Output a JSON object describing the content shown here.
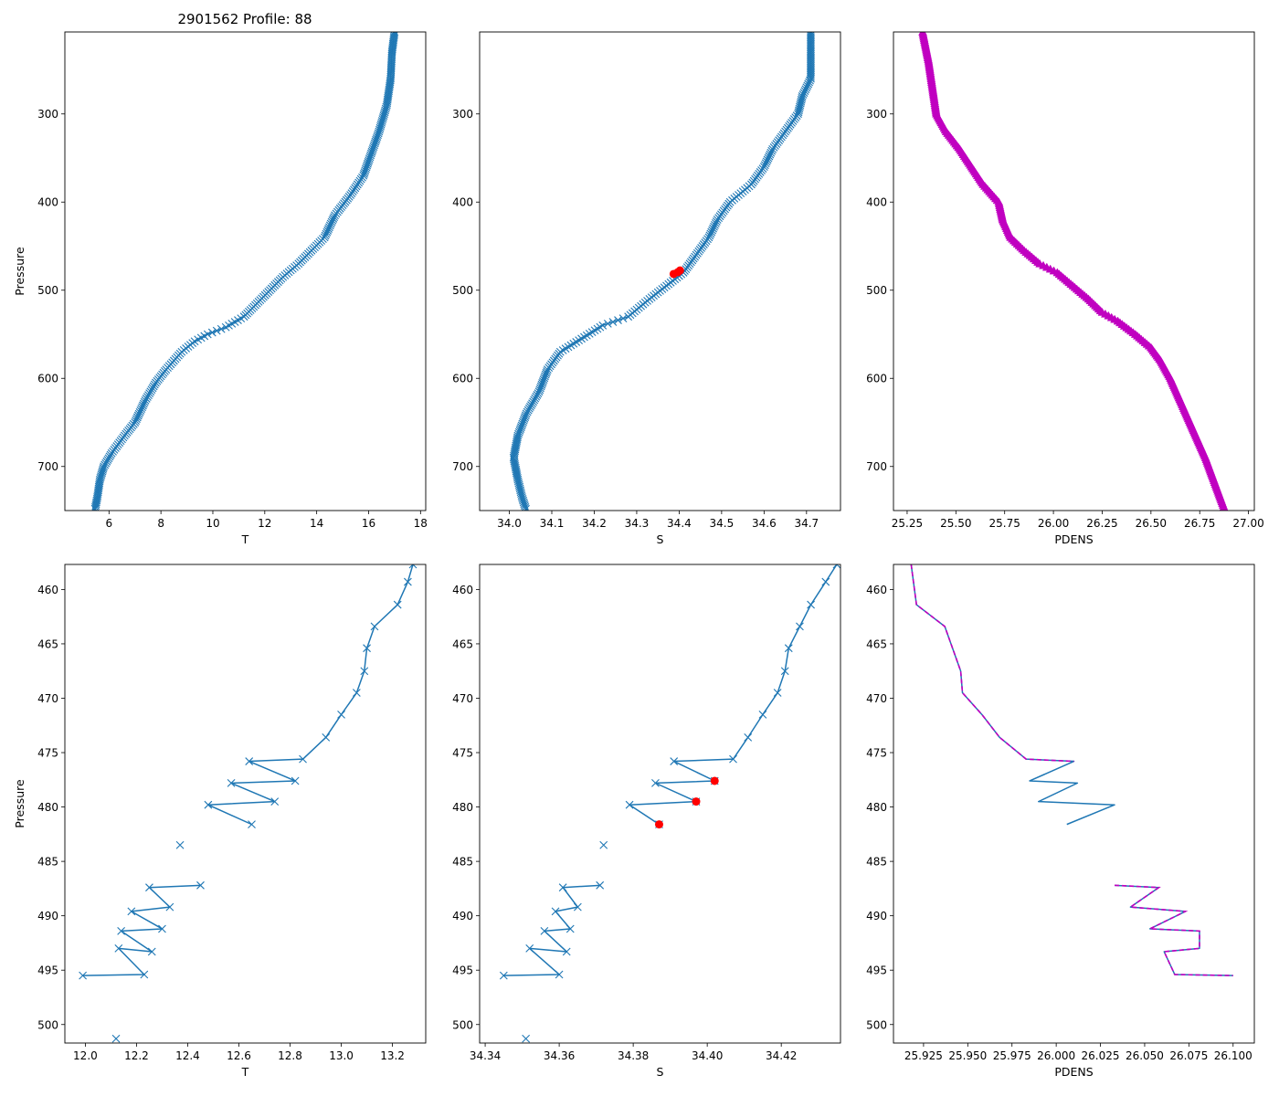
{
  "figure_title": "2901562 Profile: 88",
  "colors": {
    "series": "#1f77b4",
    "flag": "#ff0000",
    "density": "#c000c0"
  },
  "chart_data": [
    {
      "id": "temp-full",
      "type": "line",
      "marker": "x",
      "title": "",
      "xlabel": "T",
      "ylabel": "Pressure",
      "xlim": [
        4.3,
        18.2
      ],
      "ylim": [
        750,
        207
      ],
      "y_inverted": true,
      "xticks": [
        6,
        8,
        10,
        12,
        14,
        16,
        18
      ],
      "xtick_labels": [
        "6",
        "8",
        "10",
        "12",
        "14",
        "16",
        "18"
      ],
      "yticks": [
        300,
        400,
        500,
        600,
        700
      ],
      "ytick_labels": [
        "300",
        "400",
        "500",
        "600",
        "700"
      ],
      "profile": [
        [
          17.0,
          207
        ],
        [
          16.9,
          230
        ],
        [
          16.85,
          260
        ],
        [
          16.7,
          290
        ],
        [
          16.4,
          320
        ],
        [
          16.1,
          345
        ],
        [
          15.8,
          370
        ],
        [
          15.3,
          392
        ],
        [
          14.7,
          415
        ],
        [
          14.3,
          440
        ],
        [
          13.8,
          455
        ],
        [
          13.3,
          470
        ],
        [
          12.7,
          485
        ],
        [
          12.2,
          500
        ],
        [
          11.7,
          515
        ],
        [
          11.2,
          530
        ],
        [
          10.5,
          542
        ],
        [
          9.8,
          550
        ],
        [
          9.3,
          558
        ],
        [
          8.8,
          570
        ],
        [
          8.2,
          590
        ],
        [
          7.8,
          605
        ],
        [
          7.4,
          625
        ],
        [
          7.0,
          650
        ],
        [
          6.6,
          665
        ],
        [
          6.1,
          685
        ],
        [
          5.8,
          700
        ],
        [
          5.65,
          715
        ],
        [
          5.55,
          735
        ],
        [
          5.45,
          750
        ]
      ],
      "flags": []
    },
    {
      "id": "sal-full",
      "type": "line",
      "marker": "x",
      "title": "",
      "xlabel": "S",
      "ylabel": "",
      "xlim": [
        33.93,
        34.78
      ],
      "ylim": [
        750,
        207
      ],
      "y_inverted": true,
      "xticks": [
        34.0,
        34.1,
        34.2,
        34.3,
        34.4,
        34.5,
        34.6,
        34.7
      ],
      "xtick_labels": [
        "34.0",
        "34.1",
        "34.2",
        "34.3",
        "34.4",
        "34.5",
        "34.6",
        "34.7"
      ],
      "yticks": [
        300,
        400,
        500,
        600,
        700
      ],
      "ytick_labels": [
        "300",
        "400",
        "500",
        "600",
        "700"
      ],
      "profile": [
        [
          34.71,
          207
        ],
        [
          34.71,
          230
        ],
        [
          34.71,
          260
        ],
        [
          34.69,
          280
        ],
        [
          34.68,
          300
        ],
        [
          34.65,
          320
        ],
        [
          34.62,
          340
        ],
        [
          34.6,
          360
        ],
        [
          34.57,
          380
        ],
        [
          34.52,
          400
        ],
        [
          34.49,
          420
        ],
        [
          34.47,
          440
        ],
        [
          34.44,
          460
        ],
        [
          34.41,
          480
        ],
        [
          34.37,
          495
        ],
        [
          34.33,
          510
        ],
        [
          34.28,
          530
        ],
        [
          34.22,
          540
        ],
        [
          34.17,
          555
        ],
        [
          34.12,
          570
        ],
        [
          34.09,
          590
        ],
        [
          34.07,
          615
        ],
        [
          34.04,
          640
        ],
        [
          34.02,
          665
        ],
        [
          34.01,
          690
        ],
        [
          34.02,
          715
        ],
        [
          34.03,
          735
        ],
        [
          34.04,
          750
        ]
      ],
      "flags": [
        [
          34.402,
          477.6
        ],
        [
          34.397,
          479.5
        ],
        [
          34.387,
          481.6
        ]
      ]
    },
    {
      "id": "pdens-full",
      "type": "line",
      "marker": "triangle",
      "title": "",
      "xlabel": "PDENS",
      "ylabel": "",
      "xlim": [
        25.18,
        27.03
      ],
      "ylim": [
        750,
        207
      ],
      "y_inverted": true,
      "xticks": [
        25.25,
        25.5,
        25.75,
        26.0,
        26.25,
        26.5,
        26.75,
        27.0
      ],
      "xtick_labels": [
        "25.25",
        "25.50",
        "25.75",
        "26.00",
        "26.25",
        "26.50",
        "26.75",
        "27.00"
      ],
      "yticks": [
        300,
        400,
        500,
        600,
        700
      ],
      "ytick_labels": [
        "300",
        "400",
        "500",
        "600",
        "700"
      ],
      "profile": [
        [
          25.33,
          207
        ],
        [
          25.36,
          240
        ],
        [
          25.38,
          270
        ],
        [
          25.4,
          300
        ],
        [
          25.45,
          320
        ],
        [
          25.52,
          340
        ],
        [
          25.58,
          360
        ],
        [
          25.64,
          380
        ],
        [
          25.72,
          400
        ],
        [
          25.74,
          420
        ],
        [
          25.78,
          440
        ],
        [
          25.85,
          455
        ],
        [
          25.93,
          470
        ],
        [
          26.02,
          480
        ],
        [
          26.1,
          495
        ],
        [
          26.18,
          510
        ],
        [
          26.25,
          525
        ],
        [
          26.33,
          535
        ],
        [
          26.42,
          550
        ],
        [
          26.5,
          565
        ],
        [
          26.55,
          580
        ],
        [
          26.6,
          600
        ],
        [
          26.64,
          620
        ],
        [
          26.68,
          640
        ],
        [
          26.73,
          665
        ],
        [
          26.78,
          690
        ],
        [
          26.83,
          720
        ],
        [
          26.88,
          750
        ]
      ],
      "flags": []
    },
    {
      "id": "temp-zoom",
      "type": "line",
      "marker": "x",
      "title": "",
      "xlabel": "T",
      "ylabel": "Pressure",
      "xlim": [
        11.92,
        13.33
      ],
      "ylim": [
        501.7,
        457.7
      ],
      "y_inverted": true,
      "xticks": [
        12.0,
        12.2,
        12.4,
        12.6,
        12.8,
        13.0,
        13.2
      ],
      "xtick_labels": [
        "12.0",
        "12.2",
        "12.4",
        "12.6",
        "12.8",
        "13.0",
        "13.2"
      ],
      "yticks": [
        460,
        465,
        470,
        475,
        480,
        485,
        490,
        495,
        500
      ],
      "ytick_labels": [
        "460",
        "465",
        "470",
        "475",
        "480",
        "485",
        "490",
        "495",
        "500"
      ],
      "segments": [
        [
          [
            13.28,
            457.7
          ],
          [
            13.26,
            459.3
          ],
          [
            13.22,
            461.4
          ],
          [
            13.13,
            463.4
          ],
          [
            13.1,
            465.4
          ],
          [
            13.09,
            467.5
          ],
          [
            13.06,
            469.5
          ],
          [
            13.0,
            471.5
          ],
          [
            12.94,
            473.6
          ],
          [
            12.85,
            475.6
          ],
          [
            12.64,
            475.8
          ],
          [
            12.82,
            477.6
          ],
          [
            12.57,
            477.8
          ],
          [
            12.74,
            479.5
          ],
          [
            12.48,
            479.8
          ],
          [
            12.65,
            481.6
          ]
        ],
        [
          [
            12.37,
            483.5
          ]
        ],
        [
          [
            12.45,
            487.2
          ],
          [
            12.25,
            487.4
          ],
          [
            12.33,
            489.2
          ],
          [
            12.18,
            489.6
          ],
          [
            12.3,
            491.2
          ],
          [
            12.14,
            491.4
          ],
          [
            12.26,
            493.3
          ],
          [
            12.13,
            493.0
          ],
          [
            12.23,
            495.4
          ],
          [
            11.99,
            495.5
          ]
        ],
        [
          [
            12.12,
            501.3
          ]
        ]
      ],
      "flags": []
    },
    {
      "id": "sal-zoom",
      "type": "line",
      "marker": "x",
      "title": "",
      "xlabel": "S",
      "ylabel": "",
      "xlim": [
        34.3385,
        34.436
      ],
      "ylim": [
        501.7,
        457.7
      ],
      "y_inverted": true,
      "xticks": [
        34.34,
        34.36,
        34.38,
        34.4,
        34.42
      ],
      "xtick_labels": [
        "34.34",
        "34.36",
        "34.38",
        "34.40",
        "34.42"
      ],
      "yticks": [
        460,
        465,
        470,
        475,
        480,
        485,
        490,
        495,
        500
      ],
      "ytick_labels": [
        "460",
        "465",
        "470",
        "475",
        "480",
        "485",
        "490",
        "495",
        "500"
      ],
      "segments": [
        [
          [
            34.435,
            457.7
          ],
          [
            34.432,
            459.3
          ],
          [
            34.428,
            461.4
          ],
          [
            34.425,
            463.4
          ],
          [
            34.422,
            465.4
          ],
          [
            34.421,
            467.5
          ],
          [
            34.419,
            469.5
          ],
          [
            34.415,
            471.5
          ],
          [
            34.411,
            473.6
          ],
          [
            34.407,
            475.6
          ],
          [
            34.391,
            475.8
          ],
          [
            34.402,
            477.6
          ],
          [
            34.386,
            477.8
          ],
          [
            34.397,
            479.5
          ],
          [
            34.379,
            479.8
          ],
          [
            34.387,
            481.6
          ]
        ],
        [
          [
            34.372,
            483.5
          ]
        ],
        [
          [
            34.371,
            487.2
          ],
          [
            34.361,
            487.4
          ],
          [
            34.365,
            489.2
          ],
          [
            34.359,
            489.6
          ],
          [
            34.363,
            491.2
          ],
          [
            34.356,
            491.4
          ],
          [
            34.362,
            493.3
          ],
          [
            34.352,
            493.0
          ],
          [
            34.36,
            495.4
          ],
          [
            34.345,
            495.5
          ]
        ],
        [
          [
            34.351,
            501.3
          ]
        ]
      ],
      "flags": [
        [
          34.402,
          477.6
        ],
        [
          34.397,
          479.5
        ],
        [
          34.387,
          481.6
        ]
      ]
    },
    {
      "id": "pdens-zoom",
      "type": "line",
      "marker": "none",
      "title": "",
      "xlabel": "PDENS",
      "ylabel": "",
      "xlim": [
        25.908,
        26.112
      ],
      "ylim": [
        501.7,
        457.7
      ],
      "y_inverted": true,
      "xticks": [
        25.925,
        25.95,
        25.975,
        26.0,
        26.025,
        26.05,
        26.075,
        26.1
      ],
      "xtick_labels": [
        "25.925",
        "25.950",
        "25.975",
        "26.000",
        "26.025",
        "26.050",
        "26.075",
        "26.100"
      ],
      "yticks": [
        460,
        465,
        470,
        475,
        480,
        485,
        490,
        495,
        500
      ],
      "ytick_labels": [
        "460",
        "465",
        "470",
        "475",
        "480",
        "485",
        "490",
        "495",
        "500"
      ],
      "segments": [
        [
          [
            25.918,
            457.7
          ],
          [
            25.921,
            461.4
          ],
          [
            25.937,
            463.4
          ],
          [
            25.946,
            467.5
          ],
          [
            25.947,
            469.5
          ],
          [
            25.958,
            471.5
          ],
          [
            25.968,
            473.6
          ],
          [
            25.983,
            475.6
          ],
          [
            26.01,
            475.8
          ],
          [
            25.985,
            477.6
          ],
          [
            26.012,
            477.8
          ],
          [
            25.99,
            479.5
          ],
          [
            26.033,
            479.8
          ],
          [
            26.006,
            481.6
          ]
        ],
        [
          [
            26.033,
            487.2
          ],
          [
            26.058,
            487.4
          ],
          [
            26.042,
            489.2
          ],
          [
            26.073,
            489.6
          ],
          [
            26.053,
            491.2
          ],
          [
            26.081,
            491.4
          ],
          [
            26.081,
            493.0
          ],
          [
            26.061,
            493.3
          ],
          [
            26.067,
            495.4
          ],
          [
            26.1,
            495.5
          ]
        ]
      ],
      "dashed_overlay": [
        [
          [
            25.918,
            457.7
          ],
          [
            25.921,
            461.4
          ],
          [
            25.937,
            463.4
          ],
          [
            25.946,
            467.5
          ],
          [
            25.947,
            469.5
          ],
          [
            25.958,
            471.5
          ],
          [
            25.968,
            473.6
          ],
          [
            25.983,
            475.6
          ],
          [
            26.01,
            475.8
          ]
        ],
        [
          [
            26.033,
            487.2
          ],
          [
            26.058,
            487.4
          ],
          [
            26.042,
            489.2
          ],
          [
            26.073,
            489.6
          ],
          [
            26.053,
            491.2
          ],
          [
            26.081,
            491.4
          ],
          [
            26.081,
            493.0
          ],
          [
            26.061,
            493.3
          ],
          [
            26.067,
            495.4
          ],
          [
            26.1,
            495.5
          ]
        ]
      ],
      "flags": []
    }
  ]
}
